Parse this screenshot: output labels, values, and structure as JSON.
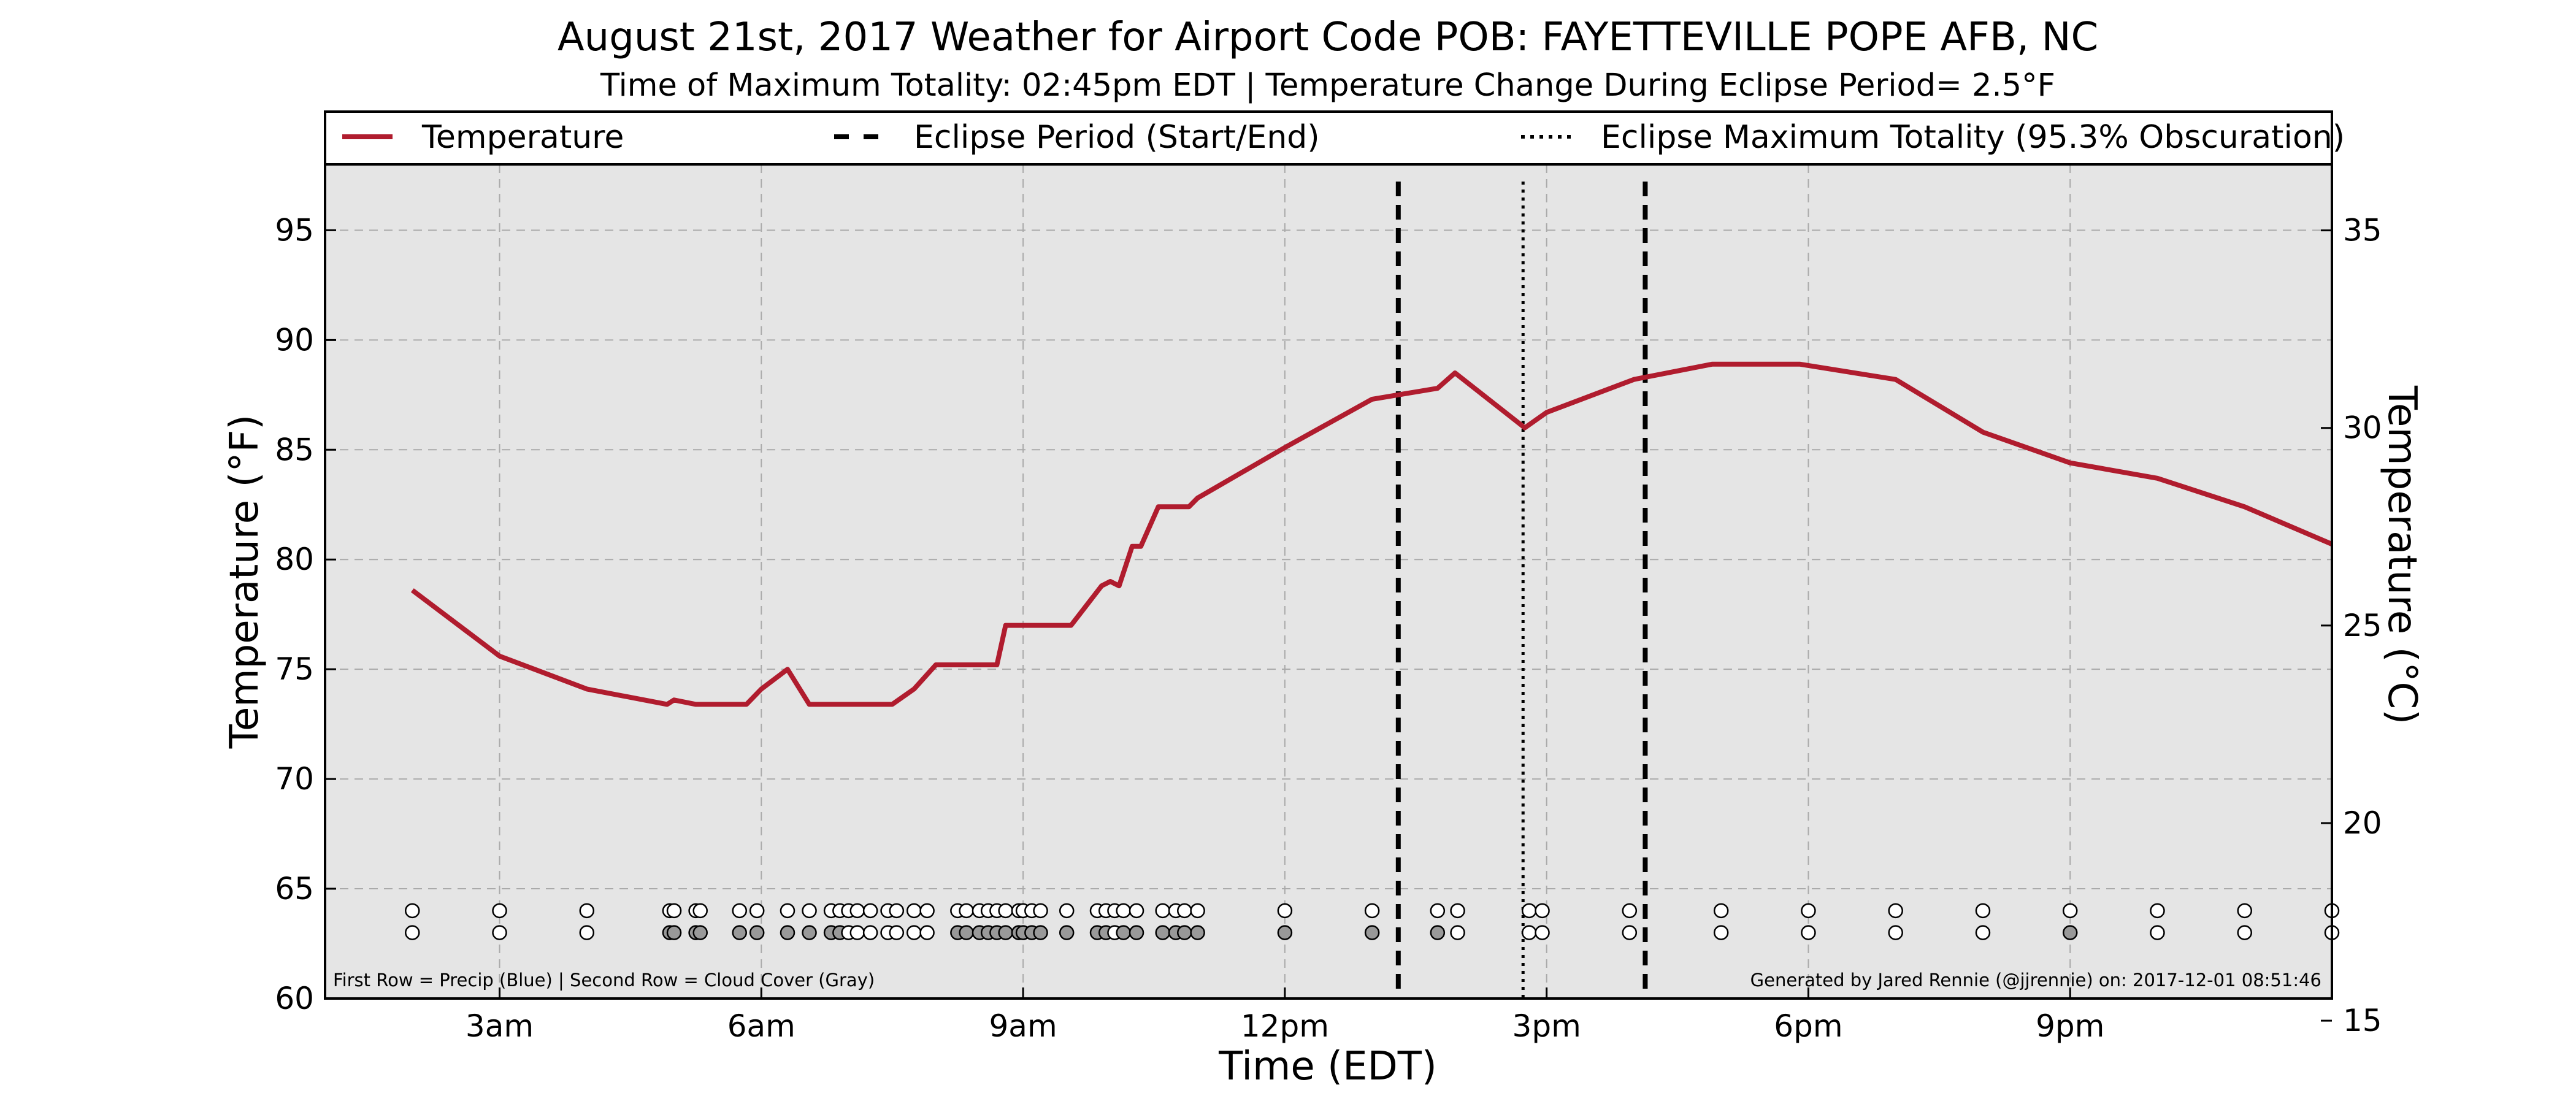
{
  "chart_data": {
    "type": "line",
    "title": "August 21st, 2017 Weather for Airport Code POB: FAYETTEVILLE POPE AFB, NC",
    "subtitle": "Time of Maximum Totality: 02:45pm EDT | Temperature Change During Eclipse Period= 2.5°F",
    "xlabel": "Time (EDT)",
    "ylabel": "Temperature (°F)",
    "y2label": "Temperature (°C)",
    "xlim": [
      1,
      24
    ],
    "ylim": [
      60,
      98
    ],
    "y2lim": [
      15.56,
      36.67
    ],
    "grid": true,
    "legend_position": "top",
    "x_ticks": [
      {
        "value": 3,
        "label": "3am"
      },
      {
        "value": 6,
        "label": "6am"
      },
      {
        "value": 9,
        "label": "9am"
      },
      {
        "value": 12,
        "label": "12pm"
      },
      {
        "value": 15,
        "label": "3pm"
      },
      {
        "value": 18,
        "label": "6pm"
      },
      {
        "value": 21,
        "label": "9pm"
      }
    ],
    "y_ticks": [
      60,
      65,
      70,
      75,
      80,
      85,
      90,
      95
    ],
    "y2_ticks": [
      15,
      20,
      25,
      30,
      35
    ],
    "legend": [
      {
        "label": "Temperature",
        "style": "solid",
        "color": "#b01c2e"
      },
      {
        "label": "Eclipse Period (Start/End)",
        "style": "dashed",
        "color": "#000000"
      },
      {
        "label": "Eclipse Maximum Totality (95.3% Obscuration)",
        "style": "dotted",
        "color": "#000000"
      }
    ],
    "series": [
      {
        "name": "Temperature",
        "color": "#b01c2e",
        "x": [
          2.0,
          3.0,
          4.0,
          4.92,
          5.0,
          5.25,
          5.83,
          6.0,
          6.3,
          6.55,
          7.0,
          7.5,
          7.75,
          8.0,
          8.25,
          8.5,
          8.7,
          8.8,
          9.0,
          9.25,
          9.55,
          9.9,
          10.0,
          10.1,
          10.25,
          10.35,
          10.55,
          10.75,
          10.9,
          11.0,
          12.0,
          13.0,
          13.75,
          13.95,
          14.75,
          15.0,
          16.0,
          16.9,
          17.9,
          19.0,
          20.0,
          21.0,
          22.0,
          23.0,
          24.0
        ],
        "y": [
          78.6,
          75.6,
          74.1,
          73.4,
          73.6,
          73.4,
          73.4,
          74.1,
          75.0,
          73.4,
          73.4,
          73.4,
          74.1,
          75.2,
          75.2,
          75.2,
          75.2,
          77.0,
          77.0,
          77.0,
          77.0,
          78.8,
          79.0,
          78.8,
          80.6,
          80.6,
          82.4,
          82.4,
          82.4,
          82.8,
          85.1,
          87.3,
          87.8,
          88.5,
          86.0,
          86.7,
          88.2,
          88.9,
          88.9,
          88.2,
          85.8,
          84.4,
          83.7,
          82.4,
          80.7
        ]
      }
    ],
    "eclipse_start": 13.3,
    "eclipse_end": 16.13,
    "eclipse_max": 14.73,
    "observations": {
      "x": [
        2.0,
        3.0,
        4.0,
        4.95,
        5.0,
        5.25,
        5.3,
        5.75,
        5.95,
        6.3,
        6.55,
        6.8,
        6.9,
        7.0,
        7.1,
        7.25,
        7.45,
        7.55,
        7.75,
        7.9,
        8.25,
        8.35,
        8.5,
        8.6,
        8.7,
        8.8,
        8.95,
        9.0,
        9.1,
        9.2,
        9.5,
        9.85,
        9.95,
        10.05,
        10.15,
        10.3,
        10.6,
        10.75,
        10.85,
        11.0,
        12.0,
        13.0,
        13.75,
        13.98,
        14.8,
        14.95,
        15.95,
        17.0,
        18.0,
        19.0,
        20.0,
        21.0,
        22.0,
        23.0,
        24.0
      ],
      "precip_row": [
        "#ffffff",
        "#ffffff",
        "#ffffff",
        "#ffffff",
        "#ffffff",
        "#ffffff",
        "#ffffff",
        "#ffffff",
        "#ffffff",
        "#ffffff",
        "#ffffff",
        "#ffffff",
        "#ffffff",
        "#ffffff",
        "#ffffff",
        "#ffffff",
        "#ffffff",
        "#ffffff",
        "#ffffff",
        "#ffffff",
        "#ffffff",
        "#ffffff",
        "#ffffff",
        "#ffffff",
        "#ffffff",
        "#ffffff",
        "#ffffff",
        "#ffffff",
        "#ffffff",
        "#ffffff",
        "#ffffff",
        "#ffffff",
        "#ffffff",
        "#ffffff",
        "#ffffff",
        "#ffffff",
        "#ffffff",
        "#ffffff",
        "#ffffff",
        "#ffffff",
        "#ffffff",
        "#ffffff",
        "#ffffff",
        "#ffffff",
        "#ffffff",
        "#ffffff",
        "#ffffff",
        "#ffffff",
        "#ffffff",
        "#ffffff",
        "#ffffff",
        "#ffffff",
        "#ffffff",
        "#ffffff",
        "#ffffff"
      ],
      "cloud_row": [
        "#ffffff",
        "#ffffff",
        "#ffffff",
        "#999999",
        "#999999",
        "#999999",
        "#999999",
        "#999999",
        "#999999",
        "#999999",
        "#999999",
        "#999999",
        "#999999",
        "#ffffff",
        "#ffffff",
        "#ffffff",
        "#ffffff",
        "#ffffff",
        "#ffffff",
        "#ffffff",
        "#999999",
        "#999999",
        "#999999",
        "#999999",
        "#999999",
        "#999999",
        "#999999",
        "#999999",
        "#999999",
        "#999999",
        "#999999",
        "#999999",
        "#999999",
        "#ffffff",
        "#999999",
        "#999999",
        "#999999",
        "#999999",
        "#999999",
        "#999999",
        "#999999",
        "#999999",
        "#999999",
        "#ffffff",
        "#ffffff",
        "#ffffff",
        "#ffffff",
        "#ffffff",
        "#ffffff",
        "#ffffff",
        "#ffffff",
        "#999999",
        "#ffffff",
        "#ffffff",
        "#ffffff"
      ]
    },
    "footnote_left": "First Row = Precip (Blue) | Second Row = Cloud Cover (Gray)",
    "footnote_right": "Generated by Jared Rennie (@jjrennie) on: 2017-12-01 08:51:46"
  }
}
